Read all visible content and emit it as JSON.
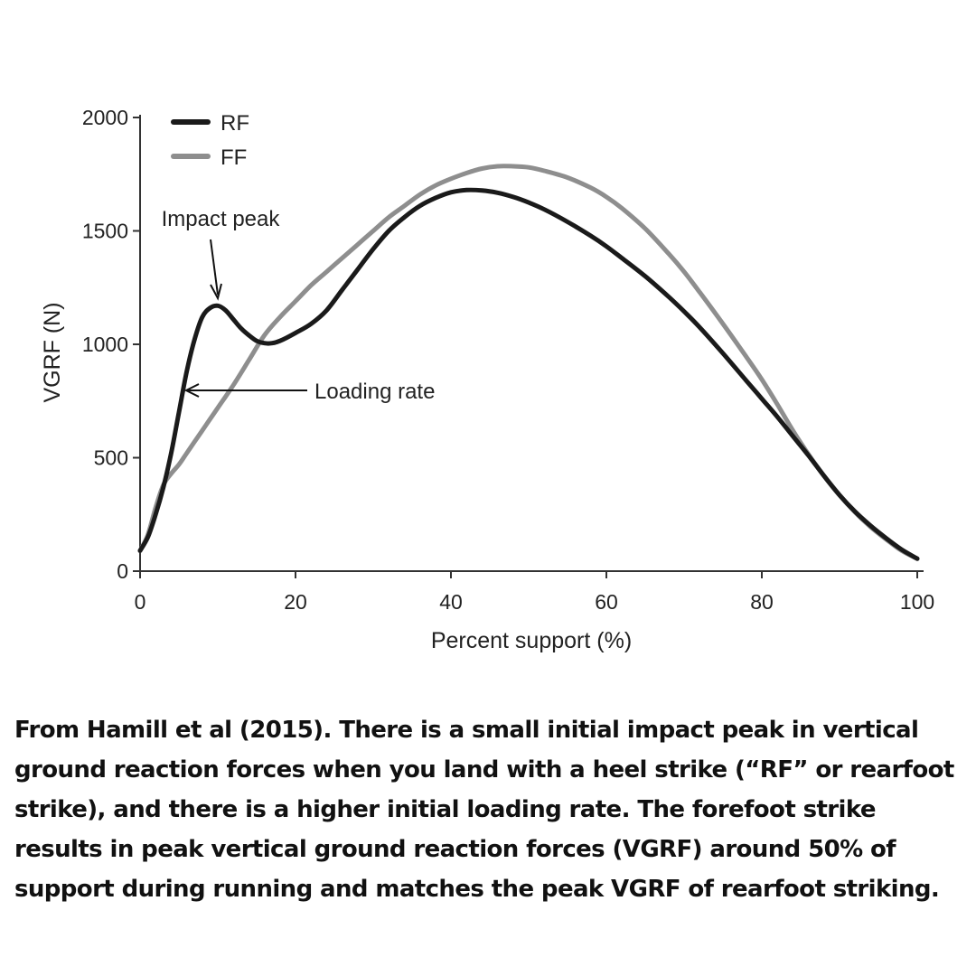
{
  "chart_data": {
    "type": "line",
    "title": "",
    "xlabel": "Percent support (%)",
    "ylabel": "VGRF (N)",
    "xlim": [
      0,
      100
    ],
    "ylim": [
      0,
      2000
    ],
    "xticks": [
      0,
      20,
      40,
      60,
      80,
      100
    ],
    "yticks": [
      0,
      500,
      1000,
      1500,
      2000
    ],
    "grid": false,
    "legend_position": "top-left",
    "series": [
      {
        "name": "RF",
        "color": "#1a1a1a",
        "x": [
          0,
          1,
          2,
          3,
          4,
          5,
          6,
          7,
          8,
          9,
          10,
          11,
          12,
          13,
          14,
          15,
          16,
          17,
          18,
          20,
          22,
          24,
          26,
          28,
          30,
          32,
          34,
          36,
          38,
          40,
          42,
          44,
          46,
          48,
          50,
          52,
          55,
          58,
          60,
          62,
          65,
          68,
          70,
          72,
          75,
          78,
          80,
          82,
          84,
          86,
          88,
          90,
          92,
          94,
          96,
          98,
          100
        ],
        "y": [
          90,
          150,
          250,
          370,
          520,
          700,
          880,
          1020,
          1120,
          1160,
          1170,
          1150,
          1110,
          1070,
          1040,
          1015,
          1005,
          1005,
          1015,
          1050,
          1090,
          1150,
          1240,
          1330,
          1420,
          1500,
          1560,
          1610,
          1645,
          1670,
          1680,
          1678,
          1668,
          1650,
          1625,
          1595,
          1540,
          1478,
          1432,
          1380,
          1300,
          1210,
          1145,
          1075,
          960,
          840,
          760,
          680,
          595,
          510,
          420,
          335,
          262,
          200,
          145,
          95,
          55
        ]
      },
      {
        "name": "FF",
        "color": "#8e8e8e",
        "x": [
          0,
          1,
          2,
          3,
          4,
          5,
          6,
          7,
          8,
          9,
          10,
          12,
          14,
          16,
          18,
          20,
          22,
          24,
          26,
          28,
          30,
          32,
          34,
          36,
          38,
          40,
          42,
          44,
          46,
          48,
          50,
          52,
          55,
          58,
          60,
          62,
          65,
          68,
          70,
          72,
          75,
          78,
          80,
          82,
          84,
          86,
          88,
          90,
          92,
          94,
          96,
          98,
          100
        ],
        "y": [
          90,
          160,
          280,
          380,
          430,
          470,
          520,
          570,
          620,
          670,
          720,
          820,
          930,
          1040,
          1120,
          1190,
          1260,
          1320,
          1380,
          1440,
          1500,
          1560,
          1610,
          1660,
          1700,
          1730,
          1755,
          1775,
          1785,
          1785,
          1780,
          1765,
          1735,
          1690,
          1650,
          1600,
          1510,
          1400,
          1320,
          1230,
          1090,
          945,
          845,
          735,
          620,
          515,
          420,
          335,
          260,
          195,
          140,
          90,
          55
        ]
      }
    ],
    "annotations": [
      {
        "text": "Impact peak",
        "target": {
          "x": 10,
          "y": 1170
        }
      },
      {
        "text": "Loading rate",
        "target": {
          "x": 6.5,
          "y": 800
        }
      }
    ]
  },
  "caption": "From Hamill et al (2015). There is a small initial impact peak in vertical ground reaction forces when you land with a heel strike (“RF” or rearfoot strike), and there is a higher initial loading rate. The forefoot strike results in peak vertical ground reaction forces (VGRF) around 50% of support during running and matches the peak VGRF of rearfoot striking."
}
